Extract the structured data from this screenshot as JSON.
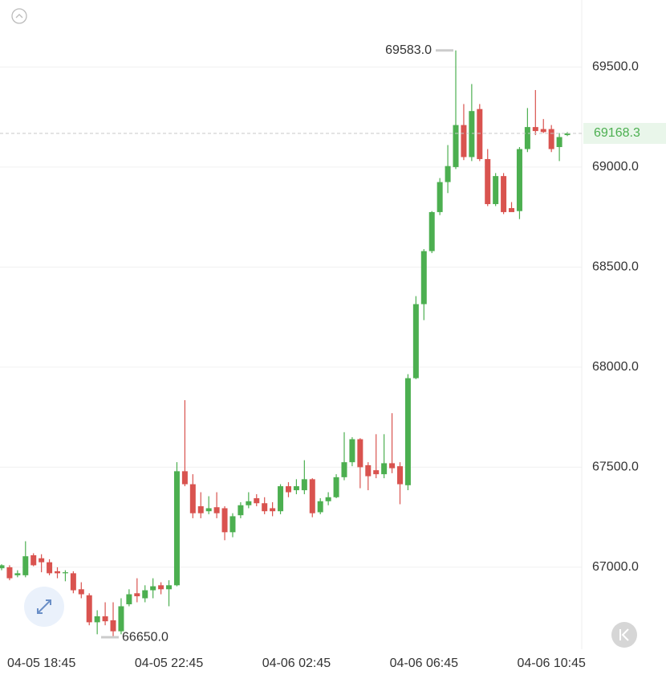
{
  "chart_data": {
    "type": "candlestick",
    "categories": [
      null,
      null,
      null,
      null,
      null,
      "04-05 18:45",
      null,
      null,
      null,
      null,
      null,
      null,
      null,
      null,
      null,
      null,
      null,
      null,
      null,
      null,
      null,
      "04-05 22:45",
      null,
      null,
      null,
      null,
      null,
      null,
      null,
      null,
      null,
      null,
      null,
      null,
      null,
      null,
      null,
      "04-06 02:45",
      null,
      null,
      null,
      null,
      null,
      null,
      null,
      null,
      null,
      null,
      null,
      null,
      null,
      null,
      null,
      "04-06 06:45",
      null,
      null,
      null,
      null,
      null,
      null,
      null,
      null,
      null,
      null,
      null,
      null,
      null,
      null,
      null,
      "04-06 10:45",
      null,
      null
    ],
    "open": [
      66995,
      67000,
      66960,
      66960,
      67060,
      67045,
      67025,
      66980,
      66970,
      66970,
      66890,
      66860,
      66725,
      66755,
      66735,
      66680,
      66815,
      66870,
      66845,
      66885,
      66910,
      66890,
      66910,
      67480,
      67415,
      67305,
      67280,
      67300,
      67295,
      67175,
      67260,
      67310,
      67345,
      67320,
      67295,
      67280,
      67405,
      67385,
      67385,
      67440,
      67275,
      67330,
      67350,
      67450,
      67525,
      67640,
      67510,
      67485,
      67465,
      67520,
      67505,
      67410,
      67945,
      68315,
      68580,
      68775,
      68925,
      69000,
      69210,
      69050,
      69290,
      69040,
      68815,
      68955,
      68795,
      68780,
      69090,
      69200,
      69190,
      69190,
      69100,
      69160
    ],
    "high": [
      67015,
      67010,
      66985,
      67130,
      67070,
      67065,
      67040,
      67000,
      66985,
      66980,
      66925,
      66870,
      66785,
      66825,
      66825,
      66845,
      66890,
      66945,
      66910,
      66945,
      66925,
      66935,
      67525,
      67835,
      67465,
      67375,
      67355,
      67375,
      67305,
      67270,
      67325,
      67375,
      67365,
      67350,
      67325,
      67415,
      67425,
      67440,
      67535,
      67445,
      67345,
      67375,
      67465,
      67675,
      67650,
      67645,
      67525,
      67665,
      67665,
      67770,
      67525,
      67965,
      68355,
      68590,
      68780,
      68945,
      69110,
      69583,
      69315,
      69415,
      69315,
      69090,
      68970,
      68970,
      68825,
      69100,
      69295,
      69385,
      69240,
      69210,
      69170,
      69175
    ],
    "low": [
      66985,
      66935,
      66950,
      66950,
      67005,
      66975,
      66960,
      66945,
      66930,
      66870,
      66845,
      66710,
      66665,
      66710,
      66650,
      66665,
      66805,
      66825,
      66825,
      66845,
      66865,
      66805,
      66905,
      67405,
      67245,
      67245,
      67265,
      67245,
      67135,
      67150,
      67245,
      67295,
      67305,
      67265,
      67255,
      67265,
      67350,
      67365,
      67365,
      67250,
      67265,
      67310,
      67345,
      67435,
      67505,
      67395,
      67385,
      67445,
      67445,
      67470,
      67315,
      67385,
      67940,
      68235,
      68570,
      68760,
      68870,
      68990,
      69035,
      69030,
      69030,
      68805,
      68805,
      68765,
      68780,
      68740,
      69075,
      69160,
      69170,
      69075,
      69030,
      69155
    ],
    "close": [
      67010,
      66945,
      66970,
      67055,
      67010,
      67025,
      66970,
      66970,
      66975,
      66885,
      66865,
      66725,
      66755,
      66730,
      66680,
      66805,
      66865,
      66855,
      66885,
      66905,
      66890,
      66910,
      67480,
      67415,
      67270,
      67270,
      67295,
      67270,
      67175,
      67255,
      67310,
      67330,
      67320,
      67280,
      67280,
      67405,
      67375,
      67405,
      67440,
      67270,
      67330,
      67350,
      67450,
      67525,
      67640,
      67500,
      67455,
      67465,
      67520,
      67495,
      67415,
      67945,
      68315,
      68580,
      68775,
      68925,
      69005,
      69210,
      69050,
      69280,
      69040,
      68815,
      68955,
      68775,
      68775,
      69090,
      69200,
      69180,
      69175,
      69090,
      69150,
      69168.3
    ],
    "up_color": "#4caf50",
    "down_color": "#d9534f",
    "ylim": [
      66590,
      69835
    ],
    "yticks": [
      {
        "value": 67000,
        "label": "67000.0"
      },
      {
        "value": 67500,
        "label": "67500.0"
      },
      {
        "value": 68000,
        "label": "68000.0"
      },
      {
        "value": 68500,
        "label": "68500.0"
      },
      {
        "value": 69000,
        "label": "69000.0"
      },
      {
        "value": 69500,
        "label": "69500.0"
      }
    ],
    "grid": true,
    "max_label": {
      "value": 69583,
      "label": "69583.0"
    },
    "min_label": {
      "value": 66650,
      "label": "66650.0"
    },
    "last_price": 69168.3
  }
}
